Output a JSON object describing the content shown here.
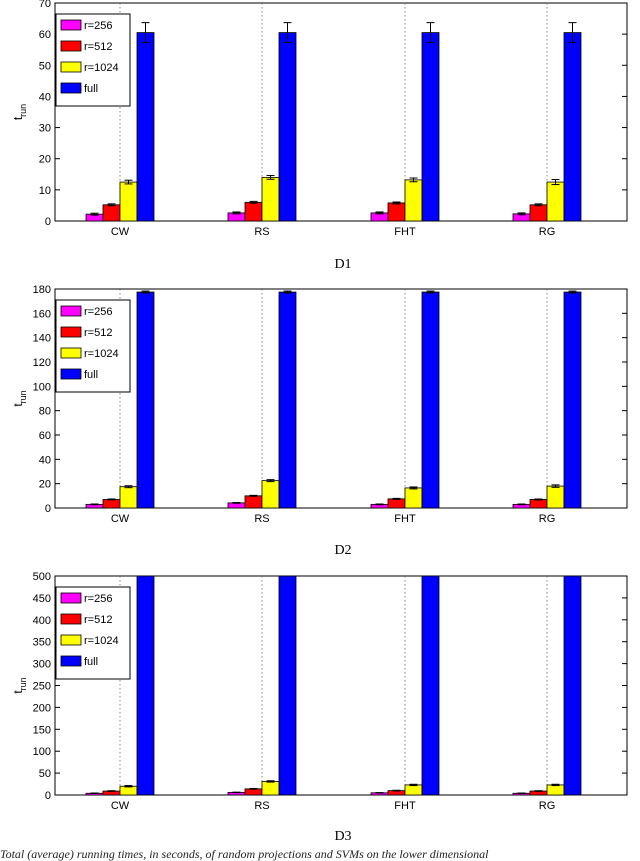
{
  "caption": "Total (average) running times, in seconds, of random projections and SVMs on the lower dimensional",
  "chart_data": [
    {
      "type": "bar",
      "title": "D1",
      "xlabel": "",
      "ylabel": "t_run",
      "ylim": [
        0,
        70
      ],
      "yticks": [
        0,
        10,
        20,
        30,
        40,
        50,
        60,
        70
      ],
      "grid": "x-dotted",
      "legend_position": "top-left",
      "categories": [
        "CW",
        "RS",
        "FHT",
        "RG"
      ],
      "series": [
        {
          "name": "r=256",
          "color": "#ff00ff",
          "values": [
            2.2,
            2.6,
            2.6,
            2.3
          ],
          "errors": [
            0.3,
            0.3,
            0.3,
            0.3
          ]
        },
        {
          "name": "r=512",
          "color": "#ff0000",
          "values": [
            5.2,
            6.0,
            5.8,
            5.2
          ],
          "errors": [
            0.3,
            0.3,
            0.3,
            0.3
          ]
        },
        {
          "name": "r=1024",
          "color": "#ffff00",
          "values": [
            12.5,
            14.0,
            13.2,
            12.5
          ],
          "errors": [
            0.6,
            0.6,
            0.6,
            0.8
          ]
        },
        {
          "name": "full",
          "color": "#0000ff",
          "values": [
            60.5,
            60.5,
            60.5,
            60.5
          ],
          "errors": [
            3.2,
            3.2,
            3.2,
            3.2
          ]
        }
      ]
    },
    {
      "type": "bar",
      "title": "D2",
      "xlabel": "",
      "ylabel": "t_run",
      "ylim": [
        0,
        180
      ],
      "yticks": [
        0,
        20,
        40,
        60,
        80,
        100,
        120,
        140,
        160,
        180
      ],
      "grid": "x-dotted",
      "legend_position": "top-left",
      "categories": [
        "CW",
        "RS",
        "FHT",
        "RG"
      ],
      "series": [
        {
          "name": "r=256",
          "color": "#ff00ff",
          "values": [
            3.0,
            4.2,
            3.0,
            3.0
          ],
          "errors": [
            0.3,
            0.3,
            0.3,
            0.3
          ]
        },
        {
          "name": "r=512",
          "color": "#ff0000",
          "values": [
            7.0,
            10.0,
            7.5,
            7.0
          ],
          "errors": [
            0.4,
            0.4,
            0.4,
            0.4
          ]
        },
        {
          "name": "r=1024",
          "color": "#ffff00",
          "values": [
            17.5,
            22.5,
            16.5,
            18.0
          ],
          "errors": [
            0.8,
            0.8,
            0.8,
            1.0
          ]
        },
        {
          "name": "full",
          "color": "#0000ff",
          "values": [
            177.5,
            177.5,
            177.5,
            177.5
          ],
          "errors": [
            0.8,
            0.8,
            0.8,
            0.8
          ]
        }
      ]
    },
    {
      "type": "bar",
      "title": "D3",
      "xlabel": "",
      "ylabel": "t_run",
      "ylim": [
        0,
        500
      ],
      "yticks": [
        0,
        50,
        100,
        150,
        200,
        250,
        300,
        350,
        400,
        450,
        500
      ],
      "grid": "x-dotted",
      "legend_position": "top-left",
      "categories": [
        "CW",
        "RS",
        "FHT",
        "RG"
      ],
      "series": [
        {
          "name": "r=256",
          "color": "#ff00ff",
          "values": [
            4,
            6,
            5,
            4
          ],
          "errors": [
            0.5,
            0.5,
            0.5,
            0.5
          ]
        },
        {
          "name": "r=512",
          "color": "#ff0000",
          "values": [
            9,
            14,
            10,
            9
          ],
          "errors": [
            0.8,
            0.8,
            0.8,
            0.8
          ]
        },
        {
          "name": "r=1024",
          "color": "#ffff00",
          "values": [
            20,
            31,
            23,
            23
          ],
          "errors": [
            1.5,
            1.5,
            1.5,
            1.5
          ]
        },
        {
          "name": "full",
          "color": "#0000ff",
          "values": [
            500,
            500,
            500,
            500
          ],
          "errors": [
            0,
            0,
            0,
            0
          ]
        }
      ]
    }
  ]
}
